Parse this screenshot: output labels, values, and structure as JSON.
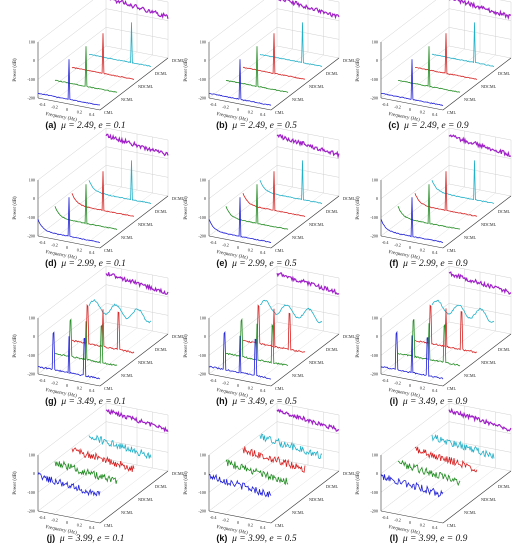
{
  "figure": {
    "panels": [
      {
        "id": "a",
        "caption_label": "(a)",
        "caption_text": "μ = 2.49, e = 0.1"
      },
      {
        "id": "b",
        "caption_label": "(b)",
        "caption_text": "μ = 2.49, e = 0.5"
      },
      {
        "id": "c",
        "caption_label": "(c)",
        "caption_text": "μ = 2.49, e = 0.9"
      },
      {
        "id": "d",
        "caption_label": "(d)",
        "caption_text": "μ = 2.99, e = 0.1"
      },
      {
        "id": "e",
        "caption_label": "(e)",
        "caption_text": "μ = 2.99, e = 0.5"
      },
      {
        "id": "f",
        "caption_label": "(f)",
        "caption_text": "μ = 2.99, e = 0.9"
      },
      {
        "id": "g",
        "caption_label": "(g)",
        "caption_text": "μ = 3.49, e = 0.1"
      },
      {
        "id": "h",
        "caption_label": "(h)",
        "caption_text": "μ = 3.49, e = 0.5"
      },
      {
        "id": "i",
        "caption_label": "(i)",
        "caption_text": "μ = 3.49, e = 0.9"
      },
      {
        "id": "j",
        "caption_label": "(j)",
        "caption_text": "μ = 3.99, e = 0.1"
      },
      {
        "id": "k",
        "caption_label": "(k)",
        "caption_text": "μ = 3.99, e = 0.5"
      },
      {
        "id": "l",
        "caption_label": "(l)",
        "caption_text": "μ = 3.99, e = 0.9"
      }
    ]
  },
  "chart_data": {
    "type": "line",
    "subtype": "3d-waterfall-power-spectrum",
    "xlabel": "Frequency (Hz)",
    "ylabel": "Power (dB)",
    "x_ticks": [
      "-0.4",
      "-0.2",
      "0",
      "0.2",
      "0.4"
    ],
    "y_ticks": [
      "100",
      "0",
      "-100",
      "-200"
    ],
    "ylim": [
      -200,
      100
    ],
    "xlim": [
      -0.5,
      0.5
    ],
    "series_axis_labels": [
      "CML",
      "NCML",
      "NDCML",
      "DCML",
      "DCML"
    ],
    "series_colors": [
      "#1f1fd6",
      "#1f8a1f",
      "#d62020",
      "#22b0c8",
      "#a020c8"
    ],
    "grid": true,
    "panels": [
      {
        "id": "a",
        "mu": 2.49,
        "e": 0.1,
        "pattern": "single_peak"
      },
      {
        "id": "b",
        "mu": 2.49,
        "e": 0.5,
        "pattern": "single_peak"
      },
      {
        "id": "c",
        "mu": 2.49,
        "e": 0.9,
        "pattern": "single_peak"
      },
      {
        "id": "d",
        "mu": 2.99,
        "e": 0.1,
        "pattern": "single_peak_curved"
      },
      {
        "id": "e",
        "mu": 2.99,
        "e": 0.5,
        "pattern": "single_peak_curved"
      },
      {
        "id": "f",
        "mu": 2.99,
        "e": 0.9,
        "pattern": "single_peak_curved"
      },
      {
        "id": "g",
        "mu": 3.49,
        "e": 0.1,
        "pattern": "multi_peak"
      },
      {
        "id": "h",
        "mu": 3.49,
        "e": 0.5,
        "pattern": "multi_peak"
      },
      {
        "id": "i",
        "mu": 3.49,
        "e": 0.9,
        "pattern": "multi_peak"
      },
      {
        "id": "j",
        "mu": 3.99,
        "e": 0.1,
        "pattern": "noisy_flat"
      },
      {
        "id": "k",
        "mu": 3.99,
        "e": 0.5,
        "pattern": "noisy_flat"
      },
      {
        "id": "l",
        "mu": 3.99,
        "e": 0.9,
        "pattern": "noisy_flat"
      }
    ]
  }
}
